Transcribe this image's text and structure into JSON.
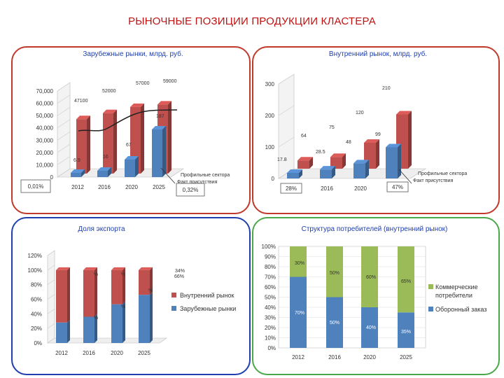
{
  "title": "РЫНОЧНЫЕ ПОЗИЦИИ ПРОДУКЦИИ КЛАСТЕРА",
  "colors": {
    "red": "#c0392b",
    "blue": "#1f3fae",
    "green": "#49a848",
    "bar_red": "#c0504d",
    "bar_blue": "#4f81bd",
    "bar_green": "#9bbb59"
  },
  "chart_data": [
    {
      "type": "bar",
      "title": "Зарубежные рынки, млрд. руб.",
      "categories": [
        "2012",
        "2016",
        "2020",
        "2025"
      ],
      "series": [
        {
          "name": "Профильные сектора",
          "values": [
            47100,
            52000,
            57000,
            59000
          ]
        },
        {
          "name": "Факт присутствия",
          "values": [
            6.9,
            16,
            67,
            187
          ]
        }
      ],
      "ylim": [
        0,
        70000
      ],
      "yticks": [
        "0",
        "10,000",
        "20,000",
        "30,000",
        "40,000",
        "50,000",
        "60,000",
        "70,000"
      ],
      "callouts": [
        "0,01%",
        "0,32%"
      ]
    },
    {
      "type": "bar",
      "title": "Внутренний рынок, млрд. руб.",
      "categories": [
        "2012",
        "2016",
        "2020",
        "2025"
      ],
      "series": [
        {
          "name": "Профильные сектора",
          "values": [
            64,
            75,
            120,
            210
          ]
        },
        {
          "name": "Факт присутствия",
          "values": [
            17.8,
            28.5,
            48,
            99
          ]
        }
      ],
      "ylim": [
        0,
        300
      ],
      "yticks": [
        "0",
        "100",
        "200",
        "300"
      ],
      "callouts": [
        "28%",
        "47%"
      ]
    },
    {
      "type": "bar",
      "title": "Доля экспорта",
      "categories": [
        "2012",
        "2016",
        "2020",
        "2025"
      ],
      "series": [
        {
          "name": "Внутренний рынок",
          "values": [
            72,
            64,
            47,
            34
          ]
        },
        {
          "name": "Зарубежные рынки",
          "values": [
            28,
            36,
            53,
            66
          ]
        }
      ],
      "ylim": [
        0,
        120
      ],
      "yticks": [
        "0%",
        "20%",
        "40%",
        "60%",
        "80%",
        "100%",
        "120%"
      ],
      "labels": [
        "34%",
        "66%",
        "%",
        "%",
        "%",
        "%",
        "%"
      ]
    },
    {
      "type": "bar",
      "title": "Структура потребителей (внутренний рынок)",
      "categories": [
        "2012",
        "2016",
        "2020",
        "2025"
      ],
      "series": [
        {
          "name": "Коммерческие потребители",
          "values": [
            30,
            50,
            60,
            65
          ],
          "labels": [
            "30%",
            "50%",
            "60%",
            "65%"
          ]
        },
        {
          "name": "Оборонный заказ",
          "values": [
            70,
            50,
            40,
            35
          ],
          "labels": [
            "70%",
            "50%",
            "40%",
            "35%"
          ]
        }
      ],
      "ylim": [
        0,
        100
      ],
      "yticks": [
        "0%",
        "10%",
        "20%",
        "30%",
        "40%",
        "50%",
        "60%",
        "70%",
        "80%",
        "90%",
        "100%"
      ]
    }
  ]
}
